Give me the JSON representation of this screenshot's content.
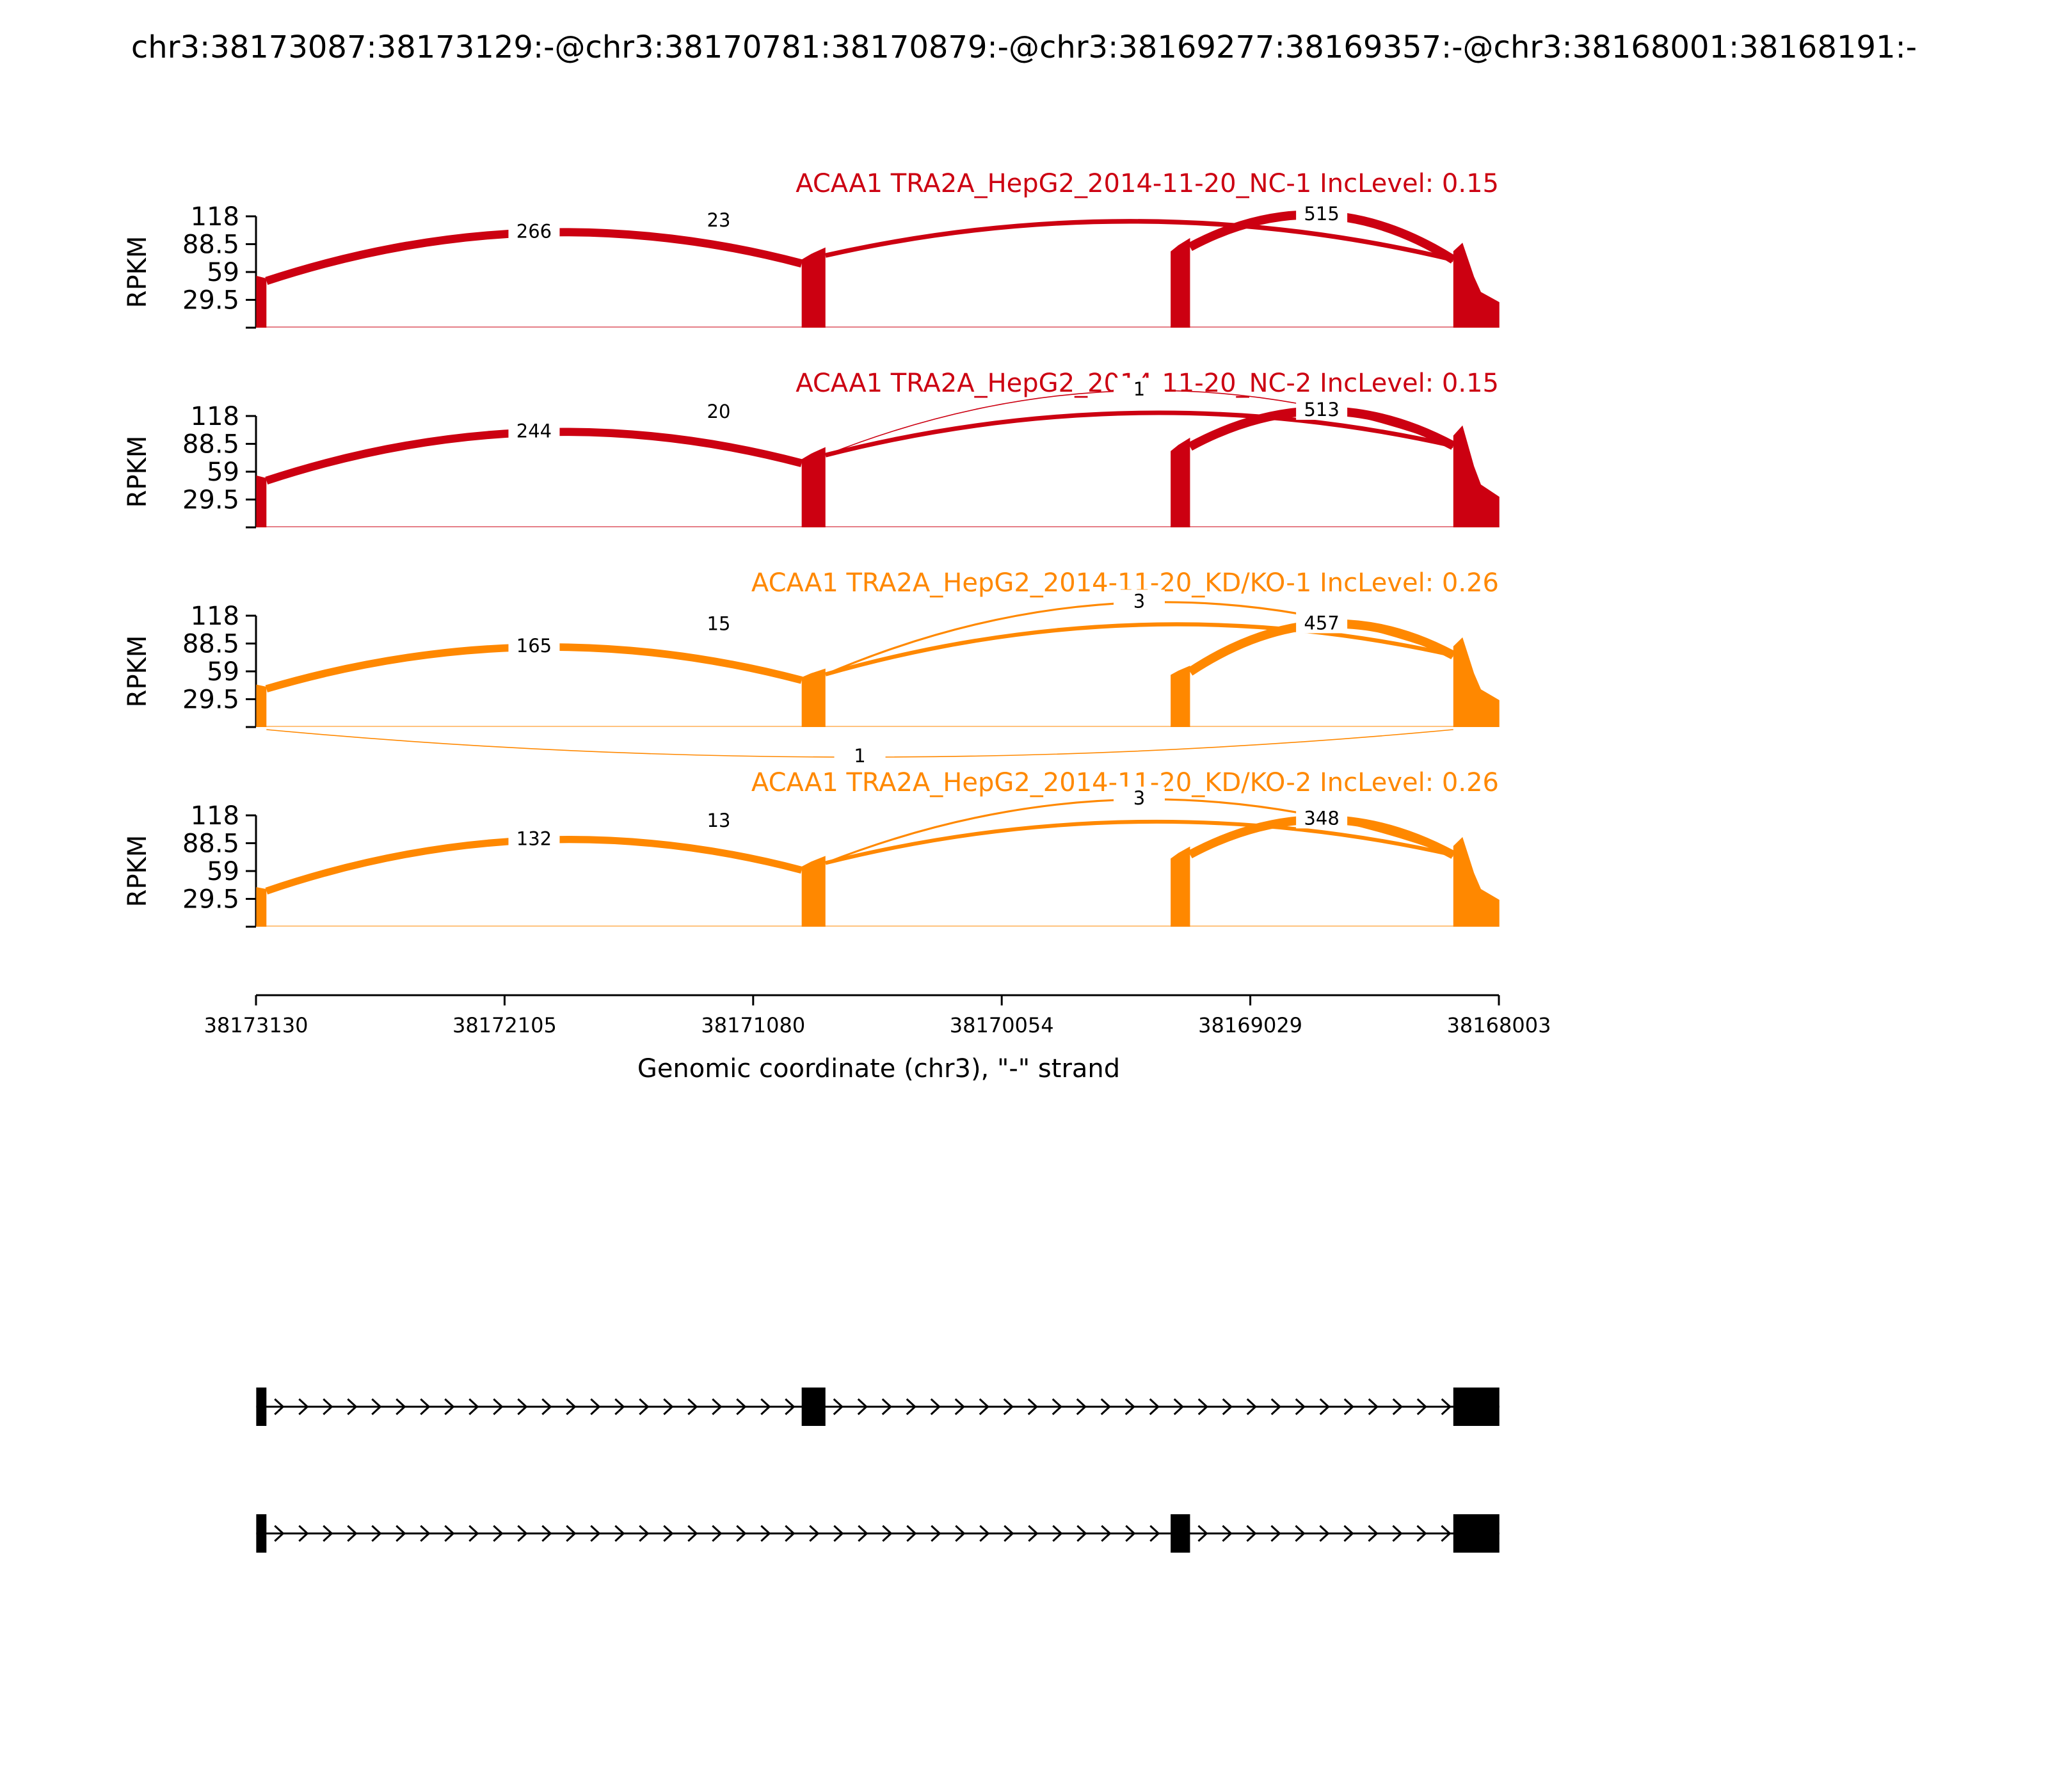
{
  "title": "chr3:38173087:38173129:-@chr3:38170781:38170879:-@chr3:38169277:38169357:-@chr3:38168001:38168191:-",
  "colors": {
    "NC": "#cc0011",
    "KD": "#ff8800",
    "axis": "#000000",
    "gene_model": "#000000"
  },
  "chart_data": {
    "type": "sashimi",
    "xaxis": {
      "label": "Genomic coordinate (chr3), \"-\" strand",
      "ticks": [
        "38173130",
        "38172105",
        "38171080",
        "38170054",
        "38169029",
        "38168003"
      ],
      "range": [
        38173130,
        38168003
      ],
      "reversed": true
    },
    "yaxis": {
      "label": "RPKM",
      "ticks": [
        "118",
        "88.5",
        "59",
        "29.5"
      ],
      "ylim": [
        0,
        118
      ]
    },
    "exons": [
      {
        "start": 38173129,
        "end": 38173087
      },
      {
        "start": 38170879,
        "end": 38170781
      },
      {
        "start": 38169357,
        "end": 38169277
      },
      {
        "start": 38168191,
        "end": 38168001
      }
    ],
    "panels": [
      {
        "title": "ACAA1 TRA2A_HepG2_2014-11-20_NC-1 IncLevel: 0.15",
        "group": "NC",
        "exon_coverage": [
          55,
          85,
          95,
          90
        ],
        "junctions": [
          {
            "from": 0,
            "to": 1,
            "count": "266",
            "side": "above"
          },
          {
            "from": 1,
            "to": 3,
            "count": "23",
            "side": "above"
          },
          {
            "from": 2,
            "to": 3,
            "count": "515",
            "side": "above"
          }
        ]
      },
      {
        "title": "ACAA1 TRA2A_HepG2_2014-11-20_NC-2 IncLevel: 0.15",
        "group": "NC",
        "exon_coverage": [
          55,
          85,
          95,
          108
        ],
        "junctions": [
          {
            "from": 0,
            "to": 1,
            "count": "244",
            "side": "above"
          },
          {
            "from": 1,
            "to": 3,
            "count": "20",
            "side": "above"
          },
          {
            "from": 1,
            "to": 3,
            "count": "1",
            "side": "above"
          },
          {
            "from": 2,
            "to": 3,
            "count": "513",
            "side": "above"
          }
        ]
      },
      {
        "title": "ACAA1 TRA2A_HepG2_2014-11-20_KD/KO-1 IncLevel: 0.26",
        "group": "KD",
        "exon_coverage": [
          45,
          62,
          65,
          95
        ],
        "junctions": [
          {
            "from": 0,
            "to": 1,
            "count": "165",
            "side": "above"
          },
          {
            "from": 1,
            "to": 3,
            "count": "15",
            "side": "above"
          },
          {
            "from": 1,
            "to": 3,
            "count": "3",
            "side": "above"
          },
          {
            "from": 2,
            "to": 3,
            "count": "457",
            "side": "above"
          },
          {
            "from": 0,
            "to": 3,
            "count": "1",
            "side": "below"
          }
        ]
      },
      {
        "title": "ACAA1 TRA2A_HepG2_2014-11-20_KD/KO-2 IncLevel: 0.26",
        "group": "KD",
        "exon_coverage": [
          42,
          75,
          85,
          95
        ],
        "junctions": [
          {
            "from": 0,
            "to": 1,
            "count": "132",
            "side": "above"
          },
          {
            "from": 1,
            "to": 3,
            "count": "13",
            "side": "above"
          },
          {
            "from": 1,
            "to": 3,
            "count": "3",
            "side": "above"
          },
          {
            "from": 2,
            "to": 3,
            "count": "348",
            "side": "above"
          }
        ]
      }
    ],
    "isoforms": [
      {
        "exons": [
          0,
          1,
          3
        ]
      },
      {
        "exons": [
          0,
          2,
          3
        ]
      }
    ]
  }
}
